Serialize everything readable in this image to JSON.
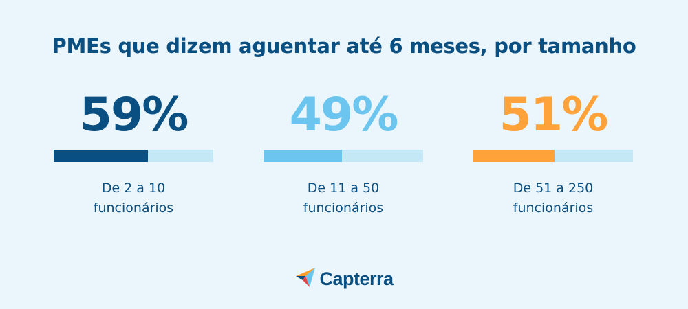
{
  "title": "PMEs que dizem aguentar até 6 meses, por tamanho",
  "chart_data": {
    "type": "bar",
    "title": "PMEs que dizem aguentar até 6 meses, por tamanho",
    "categories": [
      "De 2 a 10 funcionários",
      "De 11 a 50 funcionários",
      "De 51 a 250 funcionários"
    ],
    "values": [
      59,
      49,
      51
    ],
    "unit": "%",
    "ylim": [
      0,
      100
    ],
    "stats": [
      {
        "value": "59%",
        "fraction": 0.59,
        "label_line1": "De 2 a 10",
        "label_line2": "funcionários",
        "color": "#0a4f82",
        "track_color": "#c5e8f7"
      },
      {
        "value": "49%",
        "fraction": 0.49,
        "label_line1": "De 11 a 50",
        "label_line2": "funcionários",
        "color": "#6cc5ee",
        "track_color": "#c5e8f7"
      },
      {
        "value": "51%",
        "fraction": 0.51,
        "label_line1": "De 51 a 250",
        "label_line2": "funcionários",
        "color": "#ffa23a",
        "track_color": "#c5e8f7"
      }
    ]
  },
  "logo": {
    "text": "Capterra",
    "icon": "capterra-arrow-icon"
  },
  "colors": {
    "background": "#eaf6fc",
    "title": "#0a4f82"
  }
}
